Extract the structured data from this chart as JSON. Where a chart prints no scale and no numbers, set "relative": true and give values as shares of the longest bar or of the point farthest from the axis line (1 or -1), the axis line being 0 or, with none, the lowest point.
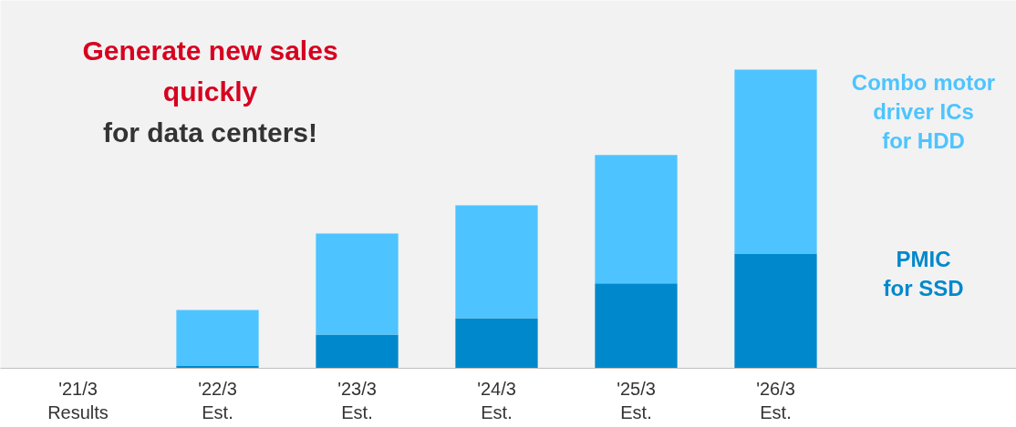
{
  "chart_data": {
    "type": "bar",
    "stacked": true,
    "relative": true,
    "categories": [
      "'21/3\nResults",
      "'22/3\nEst.",
      "'23/3\nEst.",
      "'24/3\nEst.",
      "'25/3\nEst.",
      "'26/3\nEst."
    ],
    "series": [
      {
        "name": "PMIC\nfor SSD",
        "color": "#0088cc",
        "values": [
          0,
          0.009,
          0.113,
          0.168,
          0.284,
          0.384
        ]
      },
      {
        "name": "Combo motor\ndriver ICs\nfor HDD",
        "color": "#4dc4ff",
        "values": [
          0,
          0.186,
          0.338,
          0.378,
          0.43,
          0.616
        ]
      }
    ],
    "annotations": [
      "Generate new sales",
      "quickly",
      "for data centers!"
    ],
    "grid": false
  }
}
